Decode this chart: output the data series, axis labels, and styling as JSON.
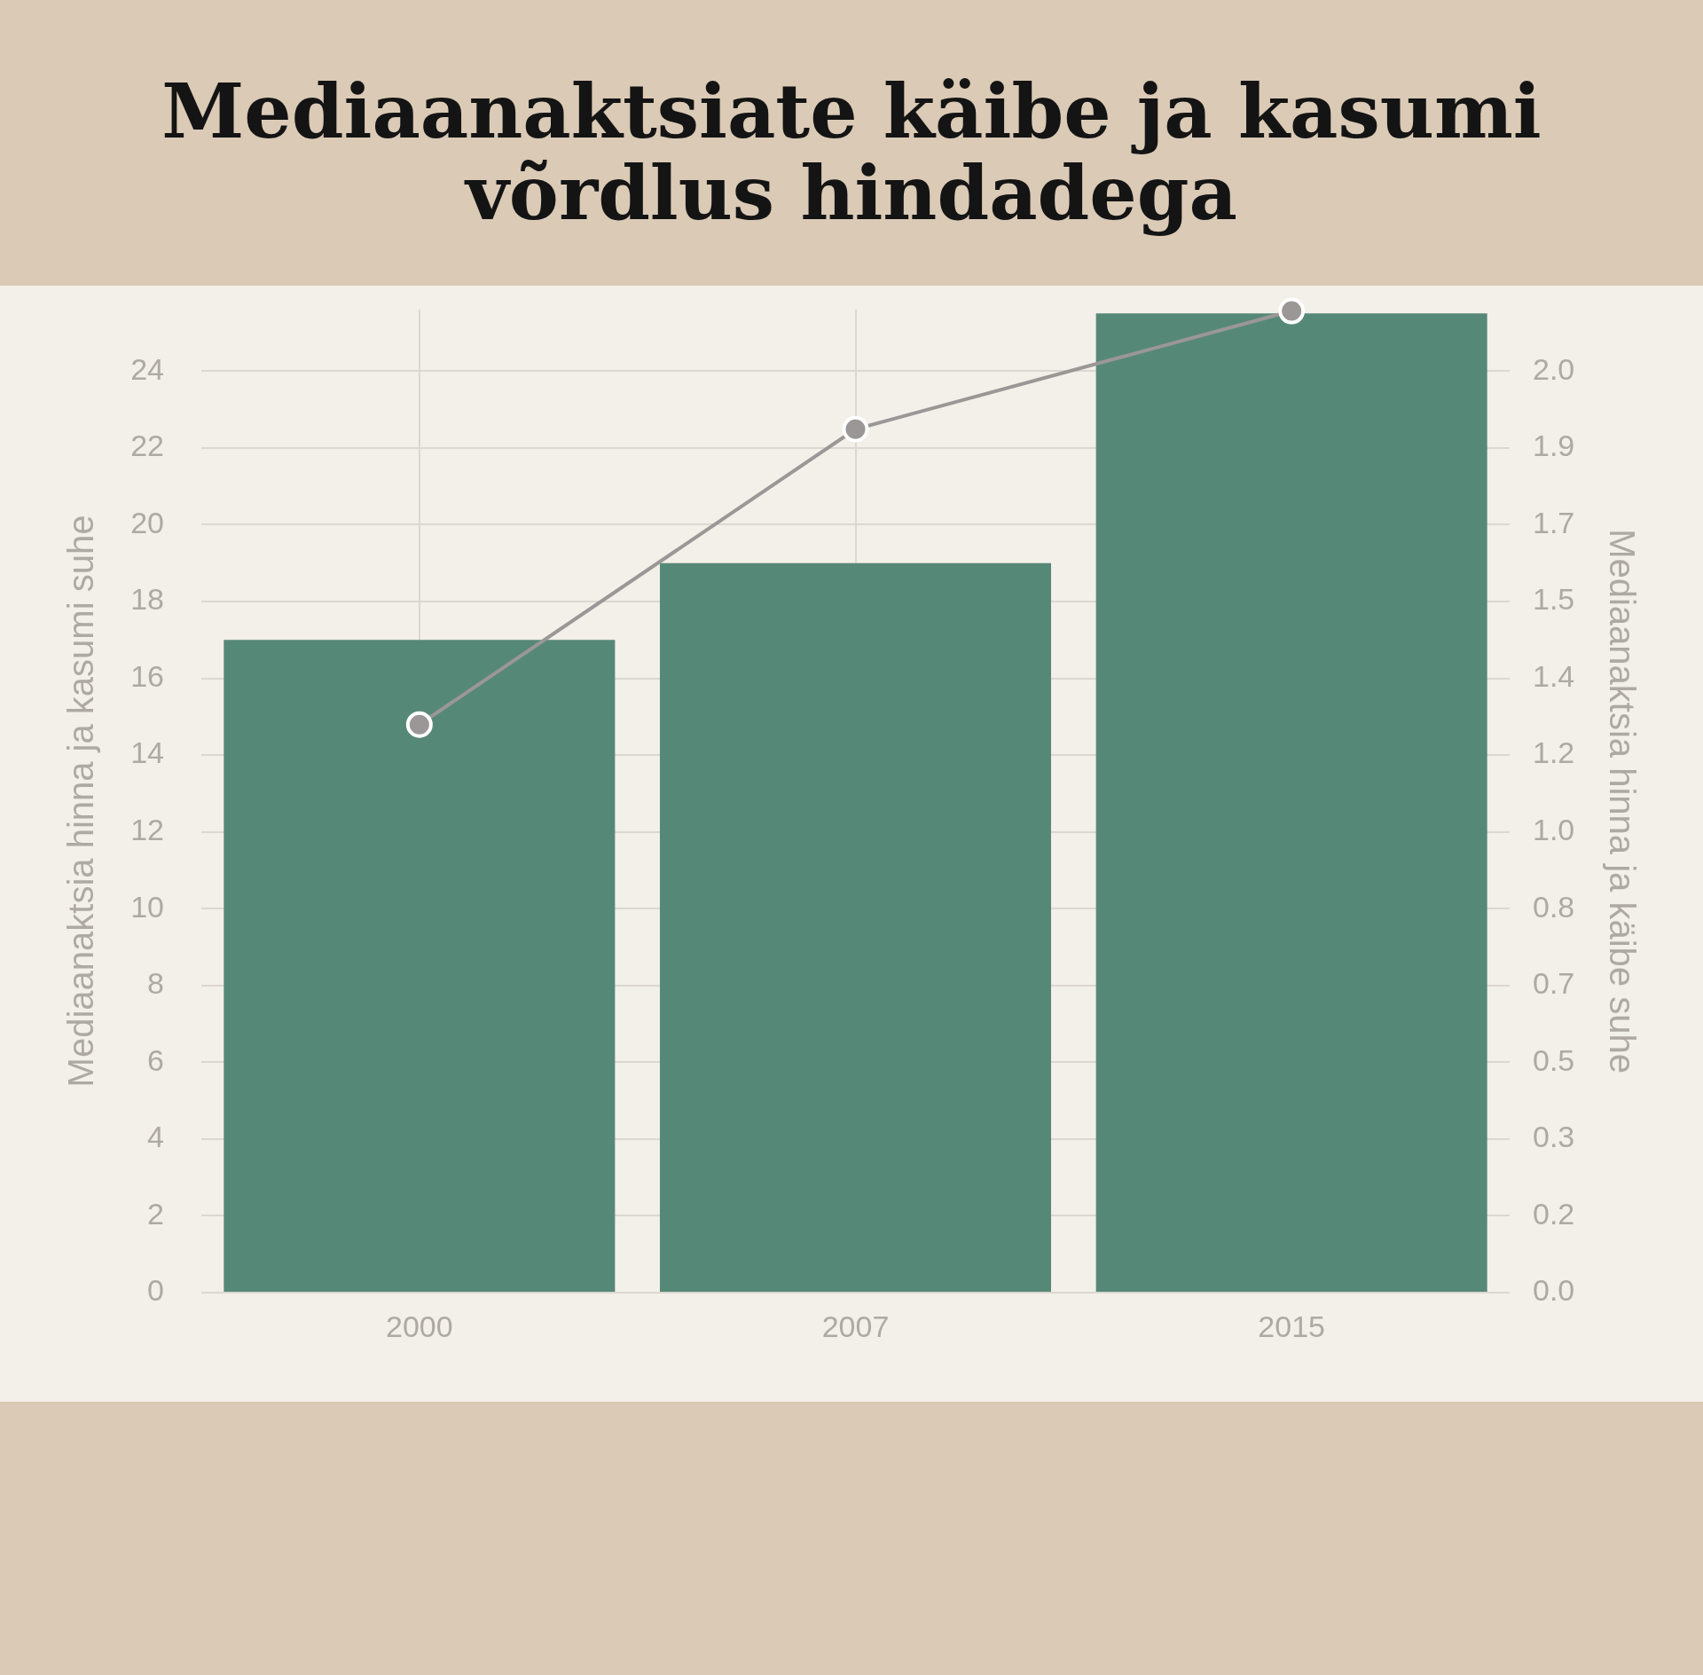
{
  "chart_data": {
    "type": "bar",
    "title": "Mediaanaktsiate käibe ja kasumi võrdlus hindadega",
    "categories": [
      "2000",
      "2007",
      "2015"
    ],
    "ylabel": "Mediaanaktsia hinna ja kasumi suhe",
    "y2label": "Mediaanaktsia hinna ja käibe suhe",
    "series": [
      {
        "color": "#568878",
        "values": [
          17.0,
          19.0,
          25.5
        ]
      },
      {
        "type": "line",
        "axis": "y2",
        "color": "#9b9797",
        "values": [
          1.25,
          1.9,
          2.16
        ]
      }
    ],
    "ylim": [
      0,
      25.6
    ],
    "yticks": [
      0,
      2,
      4,
      6,
      8,
      10,
      12,
      14,
      16,
      18,
      20,
      22,
      24
    ],
    "y2lim": [
      0,
      2.163
    ],
    "y2ticks": [
      {
        "value": 0,
        "label": "0.0"
      },
      {
        "value": 0.169,
        "label": "0.2"
      },
      {
        "value": 0.338,
        "label": "0.3"
      },
      {
        "value": 0.507,
        "label": "0.5"
      },
      {
        "value": 0.676,
        "label": "0.7"
      },
      {
        "value": 0.845,
        "label": "0.8"
      },
      {
        "value": 1.014,
        "label": "1.0"
      },
      {
        "value": 1.183,
        "label": "1.2"
      },
      {
        "value": 1.352,
        "label": "1.4"
      },
      {
        "value": 1.521,
        "label": "1.5"
      },
      {
        "value": 1.69,
        "label": "1.7"
      },
      {
        "value": 1.859,
        "label": "1.9"
      },
      {
        "value": 2.028,
        "label": "2.0"
      }
    ],
    "grid": true,
    "legend": false,
    "marker": "circle"
  }
}
